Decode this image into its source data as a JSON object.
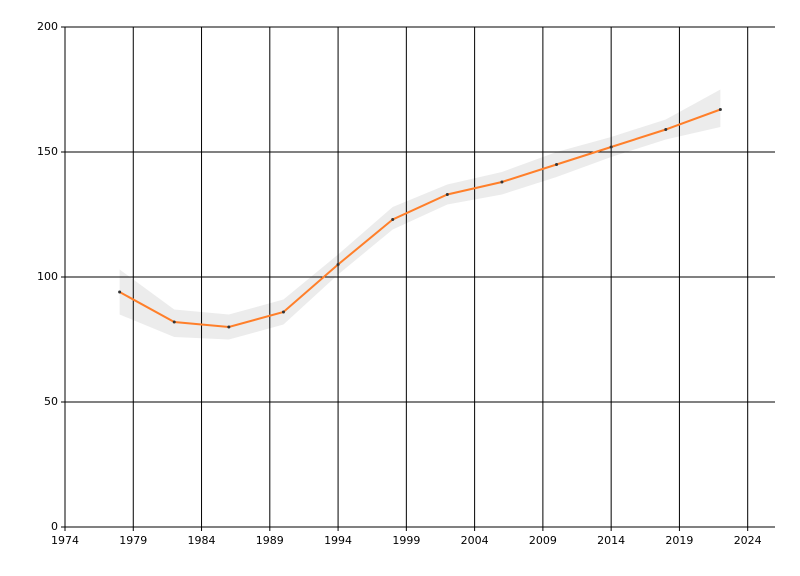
{
  "chart_data": {
    "type": "line",
    "x": [
      1978,
      1982,
      1986,
      1990,
      1994,
      1998,
      2002,
      2006,
      2010,
      2014,
      2018,
      2022
    ],
    "series": [
      {
        "color": "#ff7f2a",
        "band_color": "#ececec",
        "values": [
          94,
          82,
          80,
          86,
          105,
          123,
          133,
          138,
          145,
          152,
          159,
          167
        ],
        "lower": [
          85,
          76,
          75,
          81,
          101,
          119,
          129,
          133,
          140,
          148,
          155,
          160
        ],
        "upper": [
          103,
          87,
          85,
          91,
          109,
          128,
          137,
          142,
          150,
          156,
          163,
          175
        ]
      }
    ],
    "xlim": [
      1974,
      2026
    ],
    "xticks": [
      1974,
      1979,
      1984,
      1989,
      1994,
      1999,
      2004,
      2009,
      2014,
      2019,
      2024
    ],
    "ylim": [
      0,
      200
    ],
    "yticks": [
      0,
      50,
      100,
      150,
      200
    ],
    "grid": true
  }
}
